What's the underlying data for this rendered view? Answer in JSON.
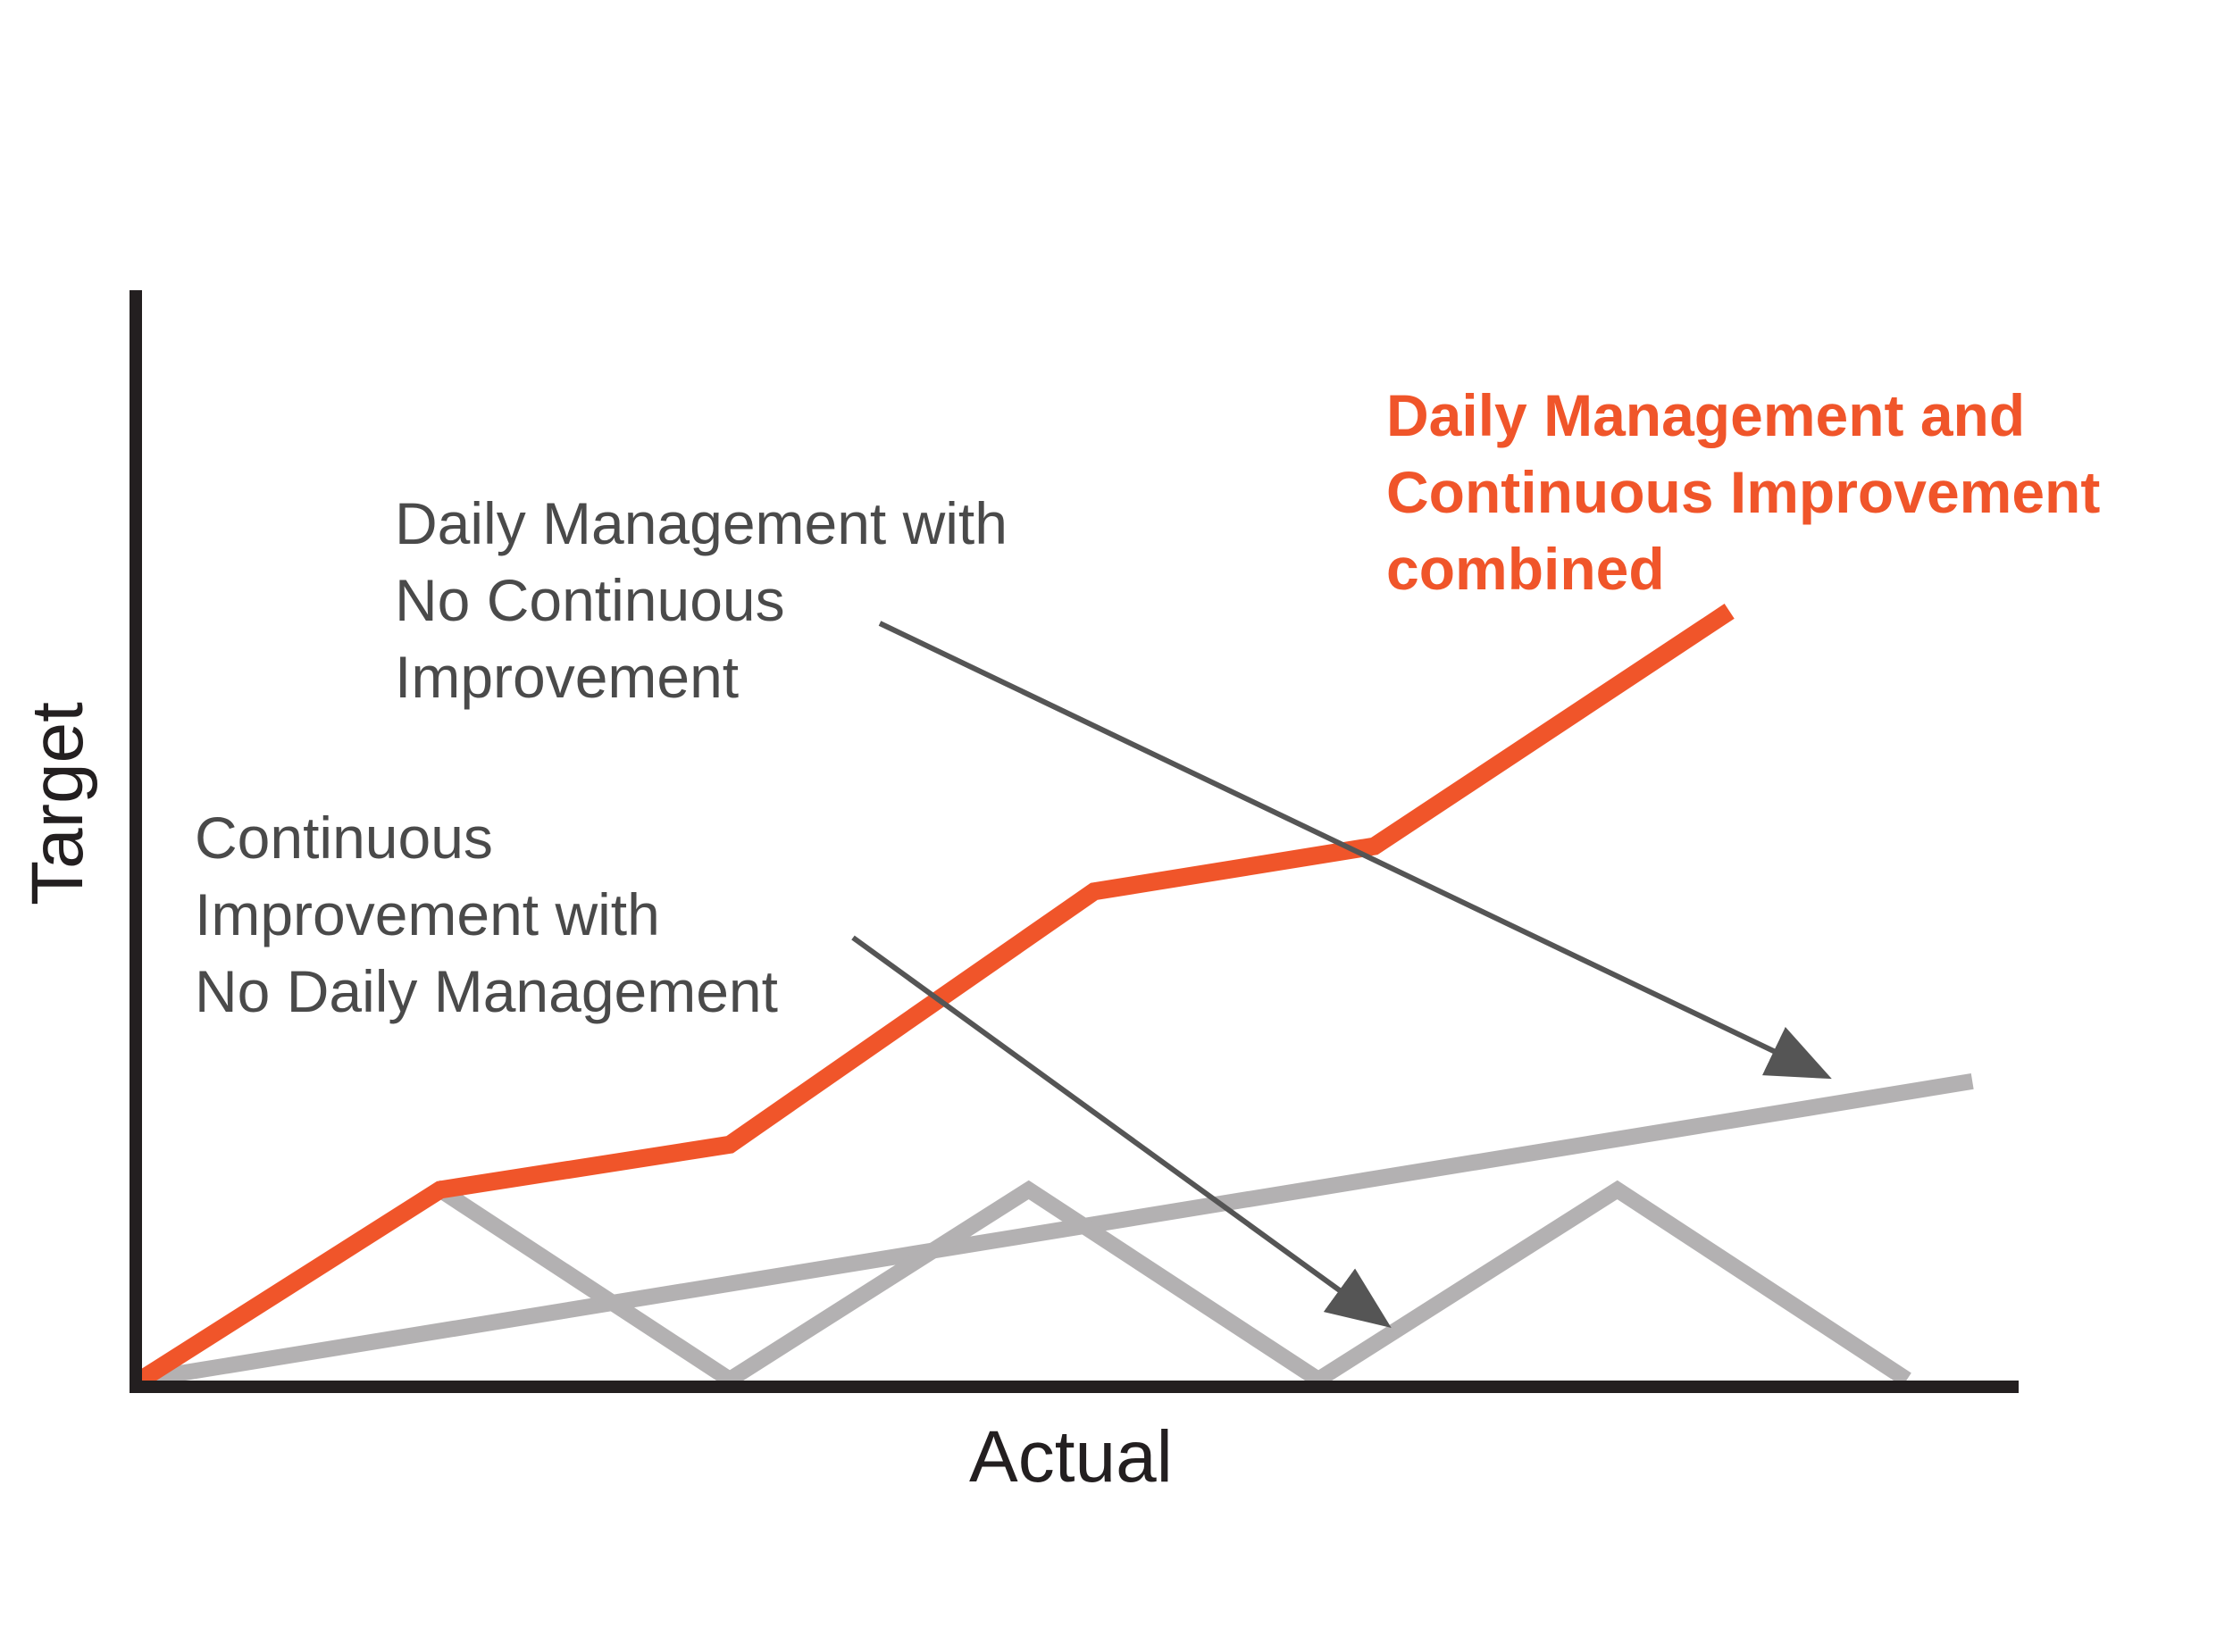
{
  "chart_data": {
    "type": "line",
    "xlabel": "Actual",
    "ylabel": "Target",
    "xlim": [
      0,
      20
    ],
    "ylim": [
      0,
      12
    ],
    "grid": false,
    "series": [
      {
        "name": "Daily Management and Continuous Improvement combined",
        "color": "#f0552a",
        "x": [
          0,
          3.2,
          6.3,
          10.2,
          13.2,
          17.0
        ],
        "y": [
          0,
          2.1,
          2.6,
          5.4,
          5.9,
          8.5
        ]
      },
      {
        "name": "Daily Management with No Continuous Improvement",
        "color": "#b3b1b2",
        "x": [
          0,
          19.6
        ],
        "y": [
          0,
          3.3
        ]
      },
      {
        "name": "Continuous Improvement with No Daily Management",
        "color": "#b3b1b2",
        "x": [
          0,
          3.2,
          6.3,
          9.5,
          12.6,
          15.8,
          18.9
        ],
        "y": [
          0,
          2.1,
          0,
          2.1,
          0,
          2.1,
          0
        ]
      }
    ],
    "annotations": {
      "combined": [
        "Daily Management and",
        "Continuous Improvement",
        "combined"
      ],
      "dm_no_ci": [
        "Daily Management with",
        "No Continuous",
        "Improvement"
      ],
      "ci_no_dm": [
        "Continuous",
        "Improvement with",
        "No Daily Management"
      ]
    },
    "colors": {
      "axis": "#231f20",
      "accent": "#f0552a",
      "gray_line": "#b3b1b2",
      "arrow": "#555555",
      "text": "#4a4a4a"
    }
  }
}
